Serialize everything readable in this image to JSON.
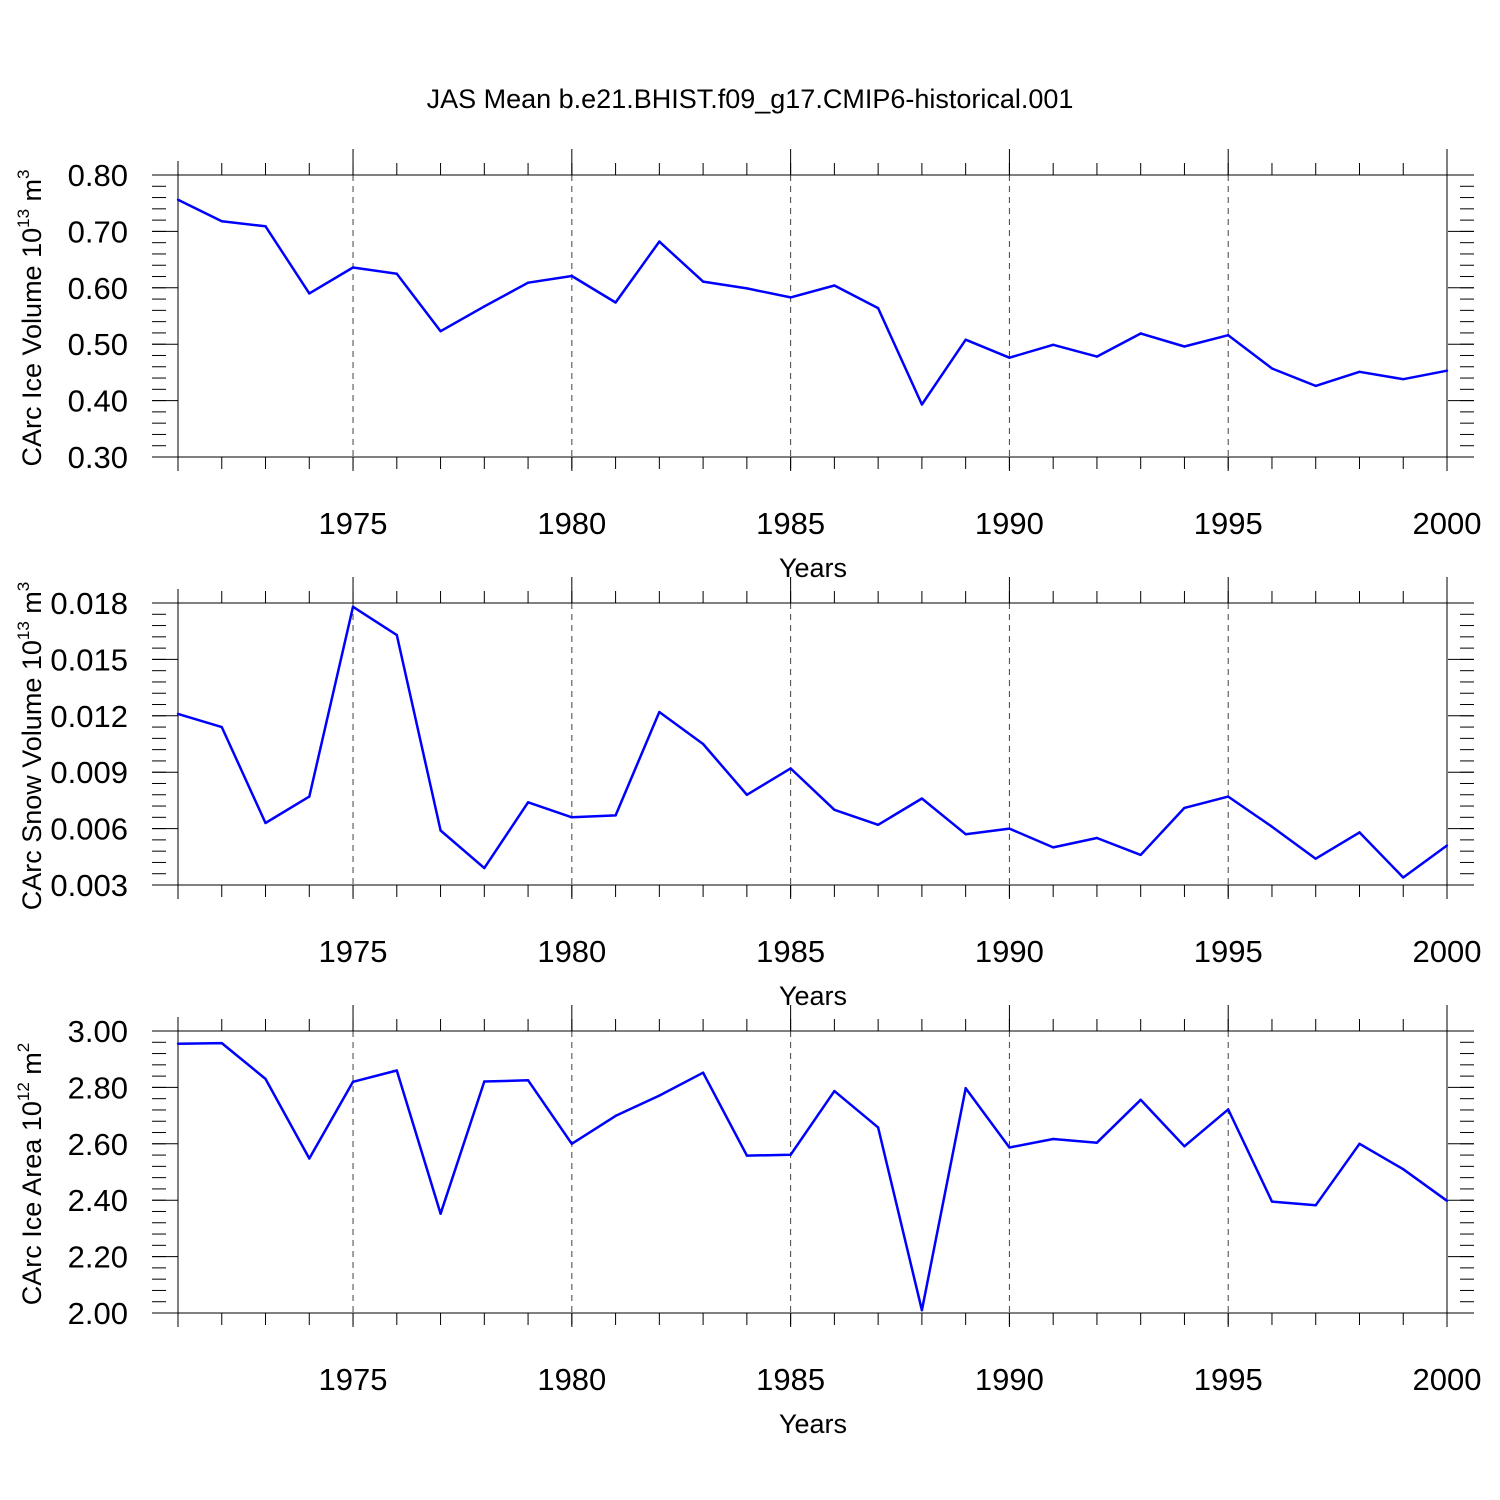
{
  "title": "JAS Mean b.e21.BHIST.f09_g17.CMIP6-historical.001",
  "chart_data": [
    {
      "type": "line",
      "title": "JAS Mean b.e21.BHIST.f09_g17.CMIP6-historical.001",
      "xlabel": "Years",
      "ylabel": {
        "main": "CArc Ice Volume 10",
        "exp": "13",
        "unit": " m",
        "unit_exp": "3"
      },
      "xlim": [
        1971,
        2000
      ],
      "ylim": [
        0.3,
        0.8
      ],
      "yticks": [
        0.3,
        0.4,
        0.5,
        0.6,
        0.7,
        0.8
      ],
      "ytick_labels": [
        "0.30",
        "0.40",
        "0.50",
        "0.60",
        "0.70",
        "0.80"
      ],
      "xticks": [
        1975,
        1980,
        1985,
        1990,
        1995,
        2000
      ],
      "xtick_labels": [
        "1975",
        "1980",
        "1985",
        "1990",
        "1995",
        "2000"
      ],
      "grid": "vertical-dashed",
      "color": "#0000ff",
      "x": [
        1971,
        1972,
        1973,
        1974,
        1975,
        1976,
        1977,
        1978,
        1979,
        1980,
        1981,
        1982,
        1983,
        1984,
        1985,
        1986,
        1987,
        1988,
        1989,
        1990,
        1991,
        1992,
        1993,
        1994,
        1995,
        1996,
        1997,
        1998,
        1999,
        2000
      ],
      "values": [
        0.756,
        0.718,
        0.709,
        0.59,
        0.636,
        0.625,
        0.523,
        0.567,
        0.609,
        0.621,
        0.574,
        0.682,
        0.611,
        0.599,
        0.583,
        0.604,
        0.564,
        0.393,
        0.508,
        0.476,
        0.499,
        0.478,
        0.519,
        0.496,
        0.516,
        0.457,
        0.426,
        0.451,
        0.438,
        0.453
      ]
    },
    {
      "type": "line",
      "xlabel": "Years",
      "ylabel": {
        "main": "CArc Snow Volume 10",
        "exp": "13",
        "unit": " m",
        "unit_exp": "3"
      },
      "xlim": [
        1971,
        2000
      ],
      "ylim": [
        0.003,
        0.018
      ],
      "yticks": [
        0.003,
        0.006,
        0.009,
        0.012,
        0.015,
        0.018
      ],
      "ytick_labels": [
        "0.003",
        "0.006",
        "0.009",
        "0.012",
        "0.015",
        "0.018"
      ],
      "xticks": [
        1975,
        1980,
        1985,
        1990,
        1995,
        2000
      ],
      "xtick_labels": [
        "1975",
        "1980",
        "1985",
        "1990",
        "1995",
        "2000"
      ],
      "grid": "vertical-dashed",
      "color": "#0000ff",
      "x": [
        1971,
        1972,
        1973,
        1974,
        1975,
        1976,
        1977,
        1978,
        1979,
        1980,
        1981,
        1982,
        1983,
        1984,
        1985,
        1986,
        1987,
        1988,
        1989,
        1990,
        1991,
        1992,
        1993,
        1994,
        1995,
        1996,
        1997,
        1998,
        1999,
        2000
      ],
      "values": [
        0.0121,
        0.0114,
        0.0063,
        0.0077,
        0.0178,
        0.0163,
        0.0059,
        0.0039,
        0.0074,
        0.0066,
        0.0067,
        0.0122,
        0.0105,
        0.0078,
        0.0092,
        0.007,
        0.0062,
        0.0076,
        0.0057,
        0.006,
        0.005,
        0.0055,
        0.0046,
        0.0071,
        0.0077,
        0.0061,
        0.0044,
        0.0058,
        0.0034,
        0.0051
      ]
    },
    {
      "type": "line",
      "xlabel": "Years",
      "ylabel": {
        "main": "CArc Ice Area 10",
        "exp": "12",
        "unit": " m",
        "unit_exp": "2"
      },
      "xlim": [
        1971,
        2000
      ],
      "ylim": [
        2.0,
        3.0
      ],
      "yticks": [
        2.0,
        2.2,
        2.4,
        2.6,
        2.8,
        3.0
      ],
      "ytick_labels": [
        "2.00",
        "2.20",
        "2.40",
        "2.60",
        "2.80",
        "3.00"
      ],
      "xticks": [
        1975,
        1980,
        1985,
        1990,
        1995,
        2000
      ],
      "xtick_labels": [
        "1975",
        "1980",
        "1985",
        "1990",
        "1995",
        "2000"
      ],
      "grid": "vertical-dashed",
      "color": "#0000ff",
      "x": [
        1971,
        1972,
        1973,
        1974,
        1975,
        1976,
        1977,
        1978,
        1979,
        1980,
        1981,
        1982,
        1983,
        1984,
        1985,
        1986,
        1987,
        1988,
        1989,
        1990,
        1991,
        1992,
        1993,
        1994,
        1995,
        1996,
        1997,
        1998,
        1999,
        2000
      ],
      "values": [
        2.955,
        2.957,
        2.83,
        2.548,
        2.82,
        2.86,
        2.352,
        2.821,
        2.825,
        2.6,
        2.699,
        2.771,
        2.852,
        2.558,
        2.561,
        2.787,
        2.658,
        2.01,
        2.797,
        2.587,
        2.617,
        2.604,
        2.756,
        2.591,
        2.722,
        2.395,
        2.382,
        2.6,
        2.51,
        2.398
      ]
    }
  ]
}
